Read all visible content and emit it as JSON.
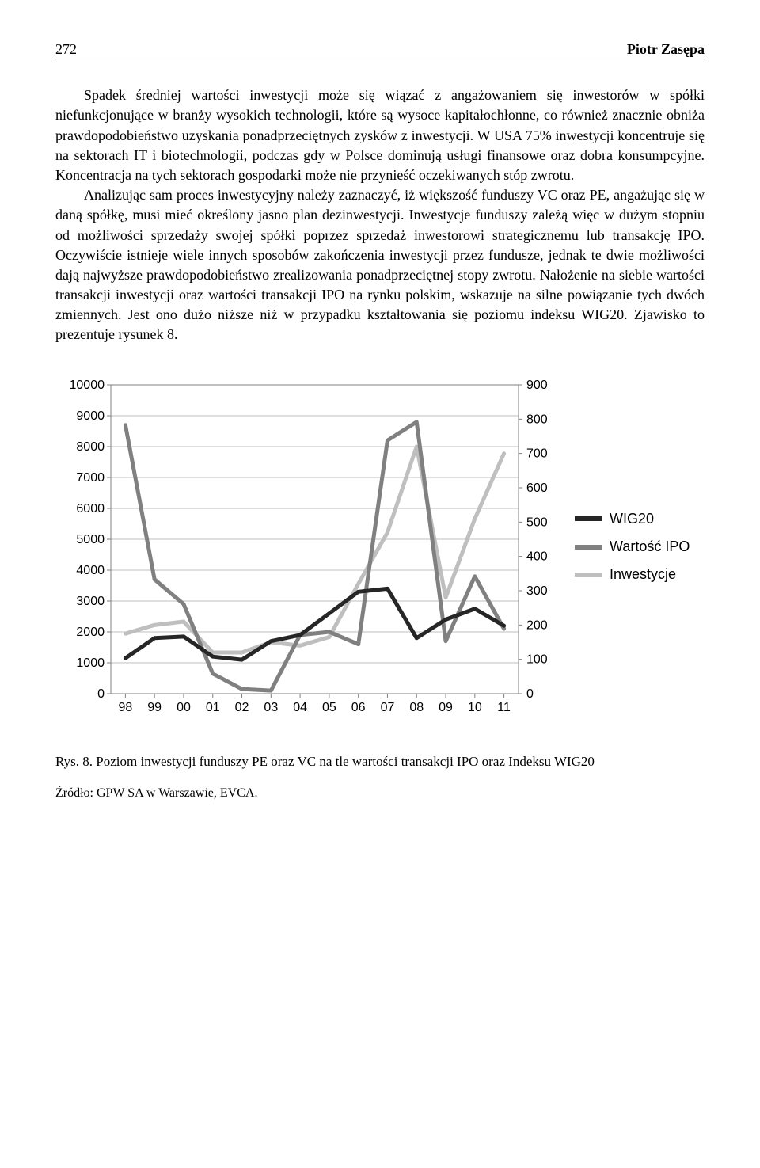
{
  "header": {
    "page_number": "272",
    "author": "Piotr Zasępa"
  },
  "paragraphs": {
    "p1": "Spadek średniej wartości inwestycji może się wiązać z angażowaniem się inwestorów w spółki niefunkcjonujące w branży wysokich technologii, które są wysoce kapitałochłonne, co również znacznie obniża prawdopodobieństwo uzyskania ponadprzeciętnych zysków z inwestycji. W USA 75% inwestycji koncentruje się na sektorach IT i biotechnologii, podczas gdy w Polsce dominują usługi finansowe oraz dobra konsumpcyjne. Koncentracja na tych sektorach gospodarki może nie przynieść oczekiwanych stóp zwrotu.",
    "p2": "Analizując sam proces inwestycyjny należy zaznaczyć, iż większość funduszy VC oraz PE, angażując się w daną spółkę, musi mieć określony jasno plan dezinwestycji. Inwestycje funduszy zależą więc w dużym stopniu od możliwości sprzedaży swojej spółki poprzez sprzedaż inwestorowi strategicznemu lub transakcję IPO. Oczywiście istnieje wiele innych sposobów zakończenia inwestycji przez fundusze, jednak te dwie możliwości dają najwyższe prawdopodobieństwo zrealizowania ponadprzeciętnej stopy zwrotu. Nałożenie na siebie wartości transakcji inwestycji oraz wartości transakcji IPO na rynku polskim, wskazuje na silne powiązanie tych dwóch zmiennych. Jest ono dużo niższe niż w przypadku kształtowania się poziomu indeksu WIG20. Zjawisko to prezentuje rysunek 8."
  },
  "chart": {
    "type": "line",
    "categories": [
      "98",
      "99",
      "00",
      "01",
      "02",
      "03",
      "04",
      "05",
      "06",
      "07",
      "08",
      "09",
      "10",
      "11"
    ],
    "left_axis": {
      "min": 0,
      "max": 10000,
      "step": 1000,
      "ticks": [
        "0",
        "1000",
        "2000",
        "3000",
        "4000",
        "5000",
        "6000",
        "7000",
        "8000",
        "9000",
        "10000"
      ]
    },
    "right_axis": {
      "min": 0,
      "max": 900,
      "step": 100,
      "ticks": [
        "0",
        "100",
        "200",
        "300",
        "400",
        "500",
        "600",
        "700",
        "800",
        "900"
      ]
    },
    "series": {
      "wig20": {
        "label": "WIG20",
        "axis": "left",
        "color": "#262626",
        "width": 5,
        "values": [
          1150,
          1800,
          1850,
          1200,
          1100,
          1700,
          1900,
          2600,
          3300,
          3400,
          1800,
          2400,
          2750,
          2200
        ]
      },
      "wartosc_ipo": {
        "label": "Wartość IPO",
        "axis": "left",
        "color": "#808080",
        "width": 5,
        "values": [
          8700,
          3700,
          2900,
          650,
          150,
          100,
          1900,
          2000,
          1600,
          8200,
          8800,
          1700,
          3800,
          2100
        ]
      },
      "inwestycje": {
        "label": "Inwestycje",
        "axis": "right",
        "color": "#bfbfbf",
        "width": 5,
        "values": [
          175,
          200,
          210,
          120,
          120,
          150,
          140,
          165,
          320,
          470,
          720,
          280,
          510,
          700
        ]
      }
    },
    "plot": {
      "bg": "#ffffff",
      "grid_color": "#bfbfbf",
      "border_color": "#808080",
      "tick_font": "Arial",
      "tick_fontsize": 16
    }
  },
  "caption": {
    "prefix": "Rys. 8.",
    "text": "Poziom inwestycji funduszy PE oraz VC na tle wartości transakcji IPO oraz Indeksu WIG20"
  },
  "source": {
    "prefix": "Źródło:",
    "text": "GPW SA w Warszawie, EVCA."
  }
}
